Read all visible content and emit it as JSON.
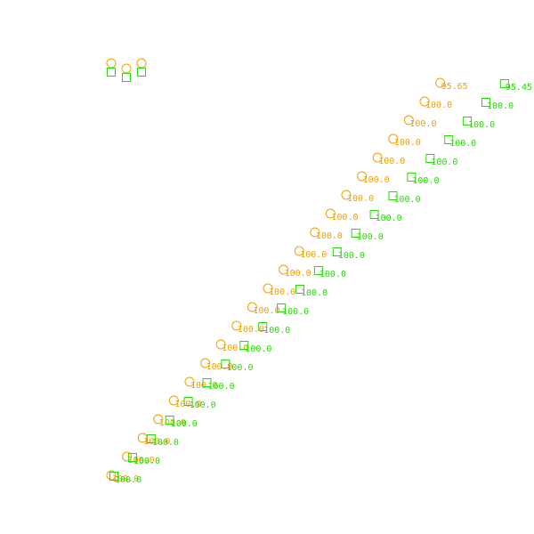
{
  "chart_data": {
    "type": "scatter",
    "title": "",
    "xlabel": "",
    "ylabel": "",
    "grid": false,
    "axes_visible": false,
    "legend": {
      "placement": "top-left",
      "entries": [
        {
          "marker": "circle",
          "color": "#f0a000"
        },
        {
          "marker": "square",
          "color": "#22dd00"
        }
      ]
    },
    "series": [
      {
        "marker": "circle",
        "color": "#f0a000",
        "points": [
          {
            "x": 0,
            "y": 0,
            "label": "100.0"
          },
          {
            "x": 1,
            "y": 1,
            "label": "100.0"
          },
          {
            "x": 2,
            "y": 2,
            "label": "100.0"
          },
          {
            "x": 3,
            "y": 3,
            "label": "100.0"
          },
          {
            "x": 4,
            "y": 4,
            "label": "100.0"
          },
          {
            "x": 5,
            "y": 5,
            "label": "100.0"
          },
          {
            "x": 6,
            "y": 6,
            "label": "100.0"
          },
          {
            "x": 7,
            "y": 7,
            "label": "100.0"
          },
          {
            "x": 8,
            "y": 8,
            "label": "100.0"
          },
          {
            "x": 9,
            "y": 9,
            "label": "100.0"
          },
          {
            "x": 10,
            "y": 10,
            "label": "100.0"
          },
          {
            "x": 11,
            "y": 11,
            "label": "100.0"
          },
          {
            "x": 12,
            "y": 12,
            "label": "100.0"
          },
          {
            "x": 13,
            "y": 13,
            "label": "100.0"
          },
          {
            "x": 14,
            "y": 14,
            "label": "100.0"
          },
          {
            "x": 15,
            "y": 15,
            "label": "100.0"
          },
          {
            "x": 16,
            "y": 16,
            "label": "100.0"
          },
          {
            "x": 17,
            "y": 17,
            "label": "100.0"
          },
          {
            "x": 18,
            "y": 18,
            "label": "100.0"
          },
          {
            "x": 19,
            "y": 19,
            "label": "100.0"
          },
          {
            "x": 20,
            "y": 20,
            "label": "100.0"
          },
          {
            "x": 21,
            "y": 21,
            "label": "95.65"
          }
        ]
      },
      {
        "marker": "square",
        "color": "#22dd00",
        "points": [
          {
            "x": 0,
            "y": 0,
            "label": "100.0"
          },
          {
            "x": 1,
            "y": 1,
            "label": "100.0"
          },
          {
            "x": 2,
            "y": 2,
            "label": "100.0"
          },
          {
            "x": 3,
            "y": 3,
            "label": "100.0"
          },
          {
            "x": 4,
            "y": 4,
            "label": "100.0"
          },
          {
            "x": 5,
            "y": 5,
            "label": "100.0"
          },
          {
            "x": 6,
            "y": 6,
            "label": "100.0"
          },
          {
            "x": 7,
            "y": 7,
            "label": "100.0"
          },
          {
            "x": 8,
            "y": 8,
            "label": "100.0"
          },
          {
            "x": 9,
            "y": 9,
            "label": "100.0"
          },
          {
            "x": 10,
            "y": 10,
            "label": "100.0"
          },
          {
            "x": 11,
            "y": 11,
            "label": "100.0"
          },
          {
            "x": 12,
            "y": 12,
            "label": "100.0"
          },
          {
            "x": 13,
            "y": 13,
            "label": "100.0"
          },
          {
            "x": 14,
            "y": 14,
            "label": "100.0"
          },
          {
            "x": 15,
            "y": 15,
            "label": "100.0"
          },
          {
            "x": 16,
            "y": 16,
            "label": "100.0"
          },
          {
            "x": 17,
            "y": 17,
            "label": "100.0"
          },
          {
            "x": 18,
            "y": 18,
            "label": "100.0"
          },
          {
            "x": 19,
            "y": 19,
            "label": "100.0"
          },
          {
            "x": 20,
            "y": 20,
            "label": "100.0"
          },
          {
            "x": 21,
            "y": 21,
            "label": "95.45"
          }
        ]
      }
    ]
  }
}
